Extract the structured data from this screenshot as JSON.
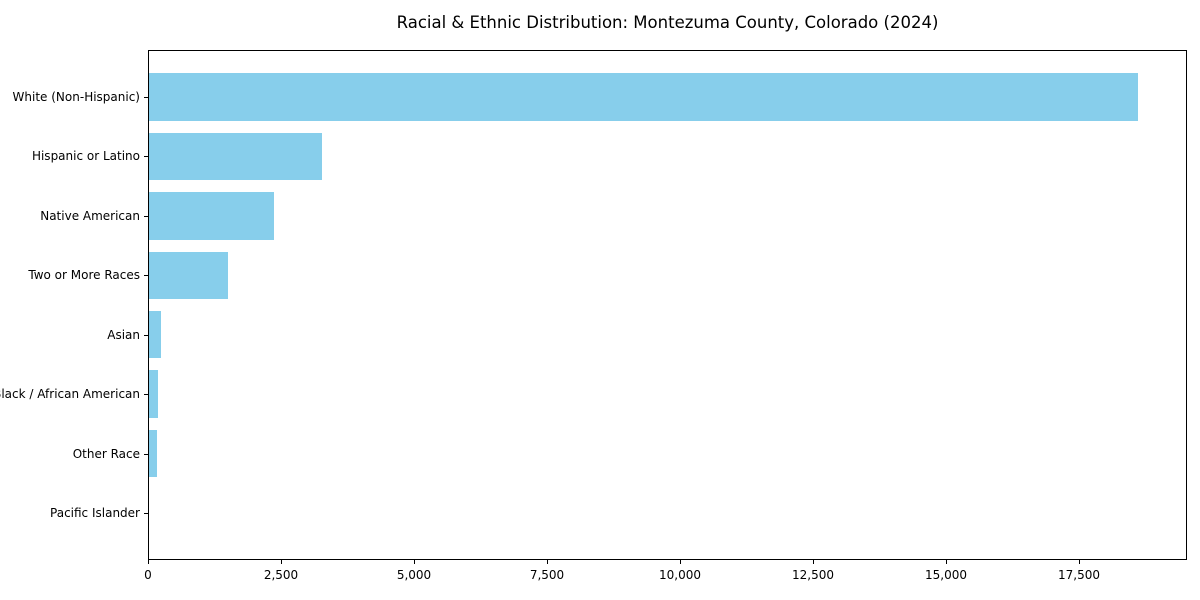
{
  "chart_data": {
    "type": "bar",
    "orientation": "horizontal",
    "title": "Racial & Ethnic Distribution: Montezuma County, Colorado (2024)",
    "categories": [
      "White (Non-Hispanic)",
      "Hispanic or Latino",
      "Native American",
      "Two or More Races",
      "Asian",
      "Black / African American",
      "Other Race",
      "Pacific Islander"
    ],
    "values": [
      18600,
      3280,
      2370,
      1505,
      245,
      190,
      175,
      20
    ],
    "xlabel": "",
    "ylabel": "",
    "xlim": [
      0,
      19530
    ],
    "xticks": [
      0,
      2500,
      5000,
      7500,
      10000,
      12500,
      15000,
      17500
    ],
    "xtick_labels": [
      "0",
      "2,500",
      "5,000",
      "7,500",
      "10,000",
      "12,500",
      "15,000",
      "17,500"
    ],
    "grid": false,
    "legend": "none",
    "bar_color": "#87CEEB"
  },
  "colors": {
    "bar": "#87CEEB",
    "axis": "#000000",
    "text": "#000000",
    "background": "#ffffff"
  }
}
